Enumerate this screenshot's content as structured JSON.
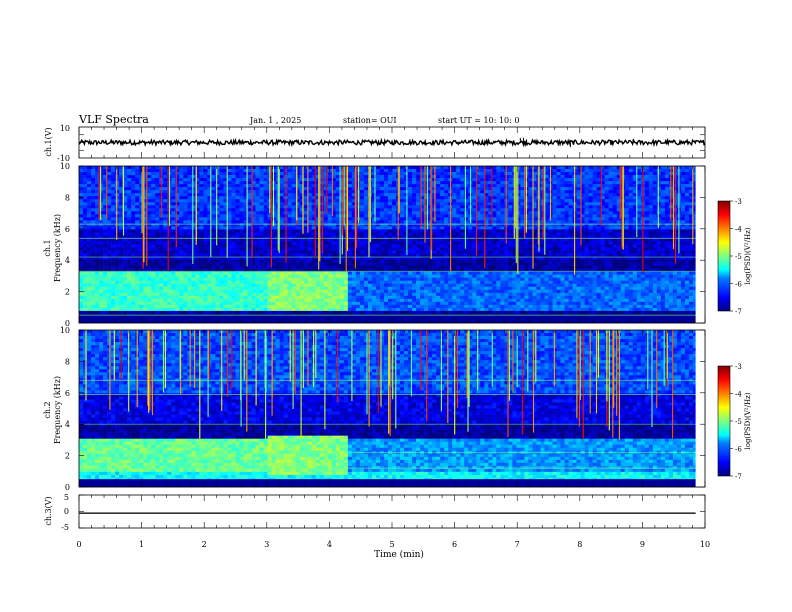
{
  "header": {
    "title": "VLF Spectra",
    "date": "Jan. 1 , 2025",
    "station": "station= OUI",
    "start": "start UT = 10: 10: 0"
  },
  "chart_data": [
    {
      "type": "line",
      "panel": "ch1-waveform",
      "ylabel": "ch.1(V)",
      "ylim": [
        -10,
        10
      ],
      "yticks": [
        "10",
        "-10"
      ],
      "xlim": [
        0,
        10
      ],
      "series": [
        {
          "values_range": [
            -1.5,
            1.5
          ],
          "mean": 0
        }
      ],
      "spikes": [
        {
          "x": 7.05,
          "y": 3
        },
        {
          "x": 7.1,
          "y": 3
        },
        {
          "x": 7.15,
          "y": 2
        },
        {
          "x": 7.85,
          "y": -3
        },
        {
          "x": 8.85,
          "y": 2
        }
      ]
    },
    {
      "type": "heatmap",
      "panel": "ch1-spectrogram",
      "ylabel": "ch.1\nFrequency (kHz)",
      "ylim": [
        0,
        10
      ],
      "yticks": [
        "0",
        "2",
        "4",
        "6",
        "8",
        "10"
      ],
      "xlim": [
        0,
        10
      ],
      "colorbar": {
        "label": "log(PSD)(V²/Hz)",
        "range": [
          -7,
          -3
        ],
        "ticks": [
          "-3",
          "-4",
          "-5",
          "-6",
          "-7"
        ]
      },
      "bands": [
        {
          "f_min": 0.8,
          "f_max": 3.2,
          "t_start": 0,
          "t_end": 4.2,
          "level": -5.3
        },
        {
          "f_min": 0.8,
          "f_max": 3.2,
          "t_start": 4.2,
          "t_end": 10,
          "level": -6.1
        },
        {
          "f_min": 4.0,
          "f_max": 6.0,
          "t_start": 0,
          "t_end": 10,
          "level": -6.7
        },
        {
          "f_min": 6.0,
          "f_max": 10.0,
          "t_start": 0,
          "t_end": 10,
          "level": -6.3
        }
      ],
      "lines_khz": [
        0.5,
        3.3,
        4.2,
        5.4,
        6.3
      ]
    },
    {
      "type": "heatmap",
      "panel": "ch2-spectrogram",
      "ylabel": "ch.2\nFrequency (kHz)",
      "ylim": [
        0,
        10
      ],
      "yticks": [
        "0",
        "2",
        "4",
        "6",
        "8",
        "10"
      ],
      "xlim": [
        0,
        10
      ],
      "colorbar": {
        "label": "log(PSD)(V²/Hz)",
        "range": [
          -7,
          -3
        ],
        "ticks": [
          "-3",
          "-4",
          "-5",
          "-6",
          "-7"
        ]
      },
      "bands": [
        {
          "f_min": 1.0,
          "f_max": 3.0,
          "t_start": 0,
          "t_end": 4.0,
          "level": -5.1
        },
        {
          "f_min": 1.0,
          "f_max": 3.0,
          "t_start": 4.0,
          "t_end": 10,
          "level": -5.9
        },
        {
          "f_min": 0.4,
          "f_max": 0.9,
          "t_start": 0,
          "t_end": 10,
          "level": -5.5
        },
        {
          "f_min": 4.0,
          "f_max": 6.0,
          "t_start": 0,
          "t_end": 10,
          "level": -6.6
        },
        {
          "f_min": 6.0,
          "f_max": 10.0,
          "t_start": 0,
          "t_end": 10,
          "level": -6.2
        }
      ],
      "lines_khz": [
        1.2,
        2.2,
        4.0,
        5.9,
        6.8
      ]
    },
    {
      "type": "line",
      "panel": "ch3-waveform",
      "ylabel": "ch.3(V)",
      "ylim": [
        -5,
        5
      ],
      "yticks": [
        "5",
        "0",
        "-5"
      ],
      "xlim": [
        0,
        10
      ],
      "xlabel": "Time (min)",
      "xticks": [
        "0",
        "1",
        "2",
        "3",
        "4",
        "5",
        "6",
        "7",
        "8",
        "9",
        "10"
      ],
      "series": [
        {
          "values_range": [
            -0.7,
            -0.3
          ],
          "mean": -0.5
        }
      ]
    }
  ],
  "palette": [
    "#00007f",
    "#0000ff",
    "#007fff",
    "#00ffff",
    "#7fff7f",
    "#ffff00",
    "#ff7f00",
    "#ff0000",
    "#7f0000"
  ]
}
